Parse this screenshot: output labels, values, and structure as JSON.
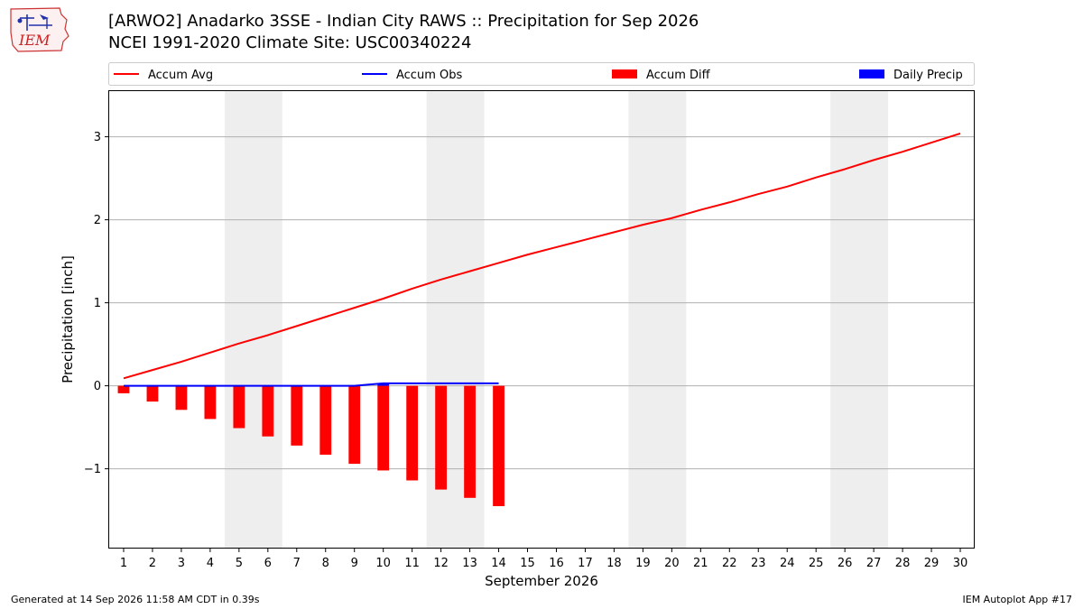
{
  "header": {
    "title_line1": "[ARWO2] Anadarko 3SSE - Indian City RAWS :: Precipitation for Sep 2026",
    "title_line2": "NCEI 1991-2020 Climate Site: USC00340224",
    "logo_text": "IEM"
  },
  "footer": {
    "generated": "Generated at 14 Sep 2026 11:58 AM CDT in 0.39s",
    "app": "IEM Autoplot App #17"
  },
  "chart_data": {
    "type": "bar",
    "title": "[ARWO2] Anadarko 3SSE - Indian City RAWS :: Precipitation for Sep 2026",
    "subtitle": "NCEI 1991-2020 Climate Site: USC00340224",
    "xlabel": "September 2026",
    "ylabel": "Precipitation [inch]",
    "xlim": [
      0.5,
      30.5
    ],
    "ylim": [
      -1.95,
      3.55
    ],
    "yticks": [
      -1,
      0,
      1,
      2,
      3
    ],
    "ytick_labels": [
      "−1",
      "0",
      "1",
      "2",
      "3"
    ],
    "xticks": [
      1,
      2,
      3,
      4,
      5,
      6,
      7,
      8,
      9,
      10,
      11,
      12,
      13,
      14,
      15,
      16,
      17,
      18,
      19,
      20,
      21,
      22,
      23,
      24,
      25,
      26,
      27,
      28,
      29,
      30
    ],
    "grid": "horizontal",
    "legend_position": "top",
    "weekend_shading": [
      [
        5,
        6
      ],
      [
        12,
        13
      ],
      [
        19,
        20
      ],
      [
        26,
        27
      ]
    ],
    "colors": {
      "accum_avg": "#ff0000",
      "accum_obs": "#0000ff",
      "accum_diff": "#ff0000",
      "daily_precip": "#0000ff",
      "weekend": "#eeeeee",
      "grid": "#b0b0b0"
    },
    "series": [
      {
        "name": "Accum Avg",
        "kind": "line",
        "x": [
          1,
          2,
          3,
          4,
          5,
          6,
          7,
          8,
          9,
          10,
          11,
          12,
          13,
          14,
          15,
          16,
          17,
          18,
          19,
          20,
          21,
          22,
          23,
          24,
          25,
          26,
          27,
          28,
          29,
          30
        ],
        "values": [
          0.09,
          0.19,
          0.29,
          0.4,
          0.51,
          0.61,
          0.72,
          0.83,
          0.94,
          1.05,
          1.17,
          1.28,
          1.38,
          1.48,
          1.58,
          1.67,
          1.76,
          1.85,
          1.94,
          2.02,
          2.12,
          2.21,
          2.31,
          2.4,
          2.51,
          2.61,
          2.72,
          2.82,
          2.93,
          3.04
        ]
      },
      {
        "name": "Accum Obs",
        "kind": "line",
        "x": [
          1,
          2,
          3,
          4,
          5,
          6,
          7,
          8,
          9,
          10,
          11,
          12,
          13,
          14
        ],
        "values": [
          0.0,
          0.0,
          0.0,
          0.0,
          0.0,
          0.0,
          0.0,
          0.0,
          0.0,
          0.03,
          0.03,
          0.03,
          0.03,
          0.03
        ]
      },
      {
        "name": "Accum Diff",
        "kind": "bar",
        "x": [
          1,
          2,
          3,
          4,
          5,
          6,
          7,
          8,
          9,
          10,
          11,
          12,
          13,
          14
        ],
        "values": [
          -0.09,
          -0.19,
          -0.29,
          -0.4,
          -0.51,
          -0.61,
          -0.72,
          -0.83,
          -0.94,
          -1.02,
          -1.14,
          -1.25,
          -1.35,
          -1.45
        ]
      },
      {
        "name": "Daily Precip",
        "kind": "bar",
        "x": [
          1,
          2,
          3,
          4,
          5,
          6,
          7,
          8,
          9,
          10,
          11,
          12,
          13,
          14
        ],
        "values": [
          0,
          0,
          0,
          0,
          0,
          0,
          0,
          0,
          0,
          0.03,
          0,
          0,
          0,
          0
        ]
      }
    ]
  }
}
